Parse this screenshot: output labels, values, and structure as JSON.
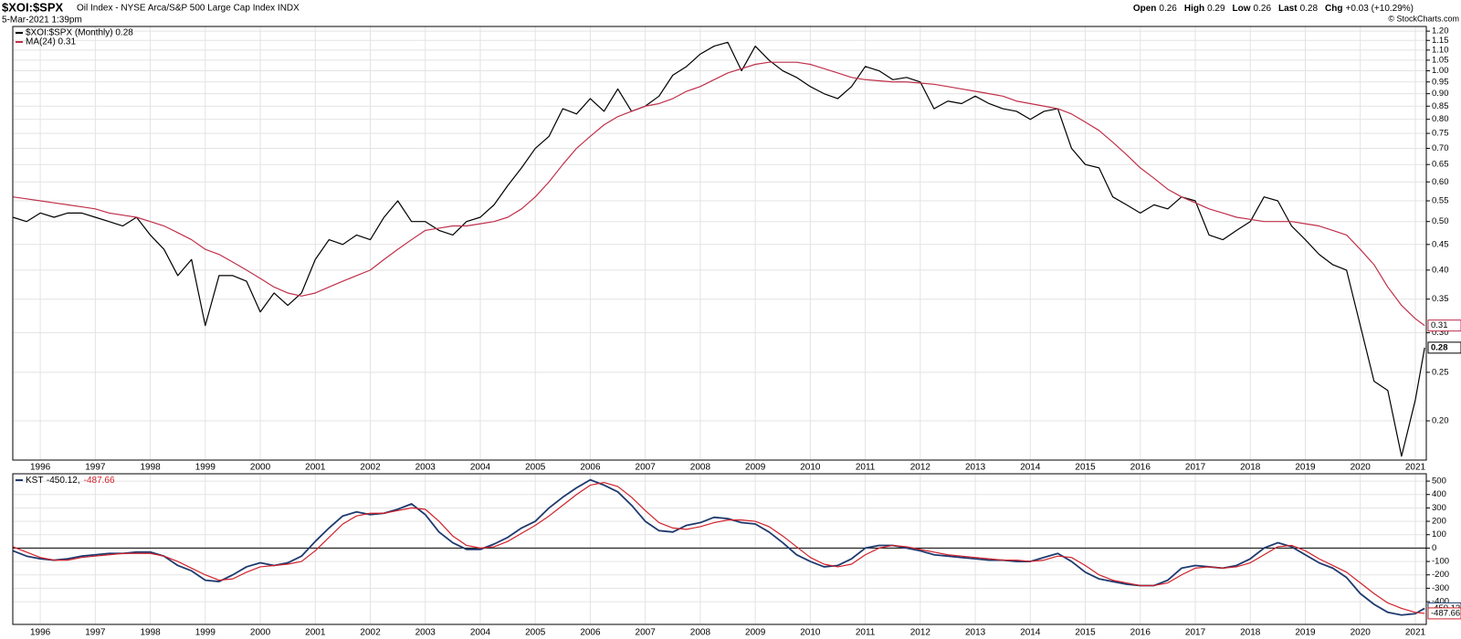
{
  "header": {
    "symbol": "$XOI:$SPX",
    "description": "Oil Index - NYSE Arca/S&P 500 Large Cap Index INDX",
    "date": "5-Mar-2021 1:39pm",
    "quote": [
      {
        "label": "Open",
        "value": "0.26"
      },
      {
        "label": "High",
        "value": "0.29"
      },
      {
        "label": "Low",
        "value": "0.26"
      },
      {
        "label": "Last",
        "value": "0.28"
      },
      {
        "label": "Chg",
        "value": "+0.03 (+10.29%)"
      }
    ],
    "copyright": "© StockCharts.com"
  },
  "chart_data": [
    {
      "type": "line",
      "log": true,
      "grid": true,
      "xlim": [
        1995.5,
        2021.2
      ],
      "ylim": [
        0.167,
        1.226
      ],
      "xticks": [
        1996,
        1997,
        1998,
        1999,
        2000,
        2001,
        2002,
        2003,
        2004,
        2005,
        2006,
        2007,
        2008,
        2009,
        2010,
        2011,
        2012,
        2013,
        2014,
        2015,
        2016,
        2017,
        2018,
        2019,
        2020,
        2021
      ],
      "yticks": [
        {
          "value": 0.2,
          "label": "0.20"
        },
        0.25,
        {
          "value": 0.3,
          "label": "0.30"
        },
        0.35,
        {
          "value": 0.4,
          "label": "0.40"
        },
        0.45,
        {
          "value": 0.5,
          "label": "0.50"
        },
        0.55,
        {
          "value": 0.6,
          "label": "0.60"
        },
        0.65,
        {
          "value": 0.7,
          "label": "0.70"
        },
        0.75,
        {
          "value": 0.8,
          "label": "0.80"
        },
        0.85,
        {
          "value": 0.9,
          "label": "0.90"
        },
        0.95,
        {
          "value": 1.0,
          "label": "1.00"
        },
        1.05,
        {
          "value": 1.1,
          "label": "1.10"
        },
        1.15,
        {
          "value": 1.2,
          "label": "1.20"
        }
      ],
      "x": [
        1995.5,
        1995.75,
        1996,
        1996.25,
        1996.5,
        1996.75,
        1997,
        1997.25,
        1997.5,
        1997.75,
        1998,
        1998.25,
        1998.5,
        1998.75,
        1999,
        1999.25,
        1999.5,
        1999.75,
        2000,
        2000.25,
        2000.5,
        2000.75,
        2001,
        2001.25,
        2001.5,
        2001.75,
        2002,
        2002.25,
        2002.5,
        2002.75,
        2003,
        2003.25,
        2003.5,
        2003.75,
        2004,
        2004.25,
        2004.5,
        2004.75,
        2005,
        2005.25,
        2005.5,
        2005.75,
        2006,
        2006.25,
        2006.5,
        2006.75,
        2007,
        2007.25,
        2007.5,
        2007.75,
        2008,
        2008.25,
        2008.5,
        2008.75,
        2009,
        2009.25,
        2009.5,
        2009.75,
        2010,
        2010.25,
        2010.5,
        2010.75,
        2011,
        2011.25,
        2011.5,
        2011.75,
        2012,
        2012.25,
        2012.5,
        2012.75,
        2013,
        2013.25,
        2013.5,
        2013.75,
        2014,
        2014.25,
        2014.5,
        2014.75,
        2015,
        2015.25,
        2015.5,
        2015.75,
        2016,
        2016.25,
        2016.5,
        2016.75,
        2017,
        2017.25,
        2017.5,
        2017.75,
        2018,
        2018.25,
        2018.5,
        2018.75,
        2019,
        2019.25,
        2019.5,
        2019.75,
        2020,
        2020.25,
        2020.5,
        2020.75,
        2021,
        2021.17
      ],
      "series": [
        {
          "name": "$XOI:$SPX (Monthly) 0.28",
          "color": "#000000",
          "last_label": "0.28",
          "values": [
            0.51,
            0.5,
            0.52,
            0.51,
            0.52,
            0.52,
            0.51,
            0.5,
            0.49,
            0.51,
            0.47,
            0.44,
            0.39,
            0.42,
            0.31,
            0.39,
            0.39,
            0.38,
            0.33,
            0.36,
            0.34,
            0.36,
            0.42,
            0.46,
            0.45,
            0.47,
            0.46,
            0.51,
            0.55,
            0.5,
            0.5,
            0.48,
            0.47,
            0.5,
            0.51,
            0.54,
            0.59,
            0.64,
            0.7,
            0.74,
            0.84,
            0.82,
            0.88,
            0.83,
            0.92,
            0.83,
            0.85,
            0.89,
            0.98,
            1.02,
            1.08,
            1.12,
            1.14,
            1.0,
            1.12,
            1.05,
            1.0,
            0.97,
            0.93,
            0.9,
            0.88,
            0.93,
            1.02,
            1.0,
            0.96,
            0.97,
            0.95,
            0.84,
            0.87,
            0.86,
            0.89,
            0.86,
            0.84,
            0.83,
            0.8,
            0.83,
            0.84,
            0.7,
            0.65,
            0.64,
            0.56,
            0.54,
            0.52,
            0.54,
            0.53,
            0.56,
            0.55,
            0.47,
            0.46,
            0.48,
            0.5,
            0.56,
            0.55,
            0.49,
            0.46,
            0.43,
            0.41,
            0.4,
            0.31,
            0.24,
            0.23,
            0.17,
            0.22,
            0.28
          ]
        },
        {
          "name": "MA(24) 0.31",
          "color": "#c0304a",
          "last_label": "0.31",
          "values": [
            0.56,
            0.555,
            0.55,
            0.545,
            0.54,
            0.535,
            0.53,
            0.52,
            0.515,
            0.51,
            0.5,
            0.49,
            0.475,
            0.46,
            0.44,
            0.43,
            0.415,
            0.4,
            0.385,
            0.37,
            0.36,
            0.355,
            0.36,
            0.37,
            0.38,
            0.39,
            0.4,
            0.42,
            0.44,
            0.46,
            0.48,
            0.485,
            0.49,
            0.49,
            0.495,
            0.5,
            0.51,
            0.53,
            0.56,
            0.6,
            0.65,
            0.7,
            0.74,
            0.78,
            0.81,
            0.83,
            0.85,
            0.86,
            0.88,
            0.91,
            0.93,
            0.96,
            0.99,
            1.01,
            1.03,
            1.04,
            1.04,
            1.04,
            1.03,
            1.01,
            0.99,
            0.97,
            0.96,
            0.955,
            0.95,
            0.95,
            0.945,
            0.94,
            0.93,
            0.92,
            0.91,
            0.9,
            0.89,
            0.87,
            0.86,
            0.85,
            0.84,
            0.82,
            0.79,
            0.76,
            0.72,
            0.68,
            0.64,
            0.61,
            0.58,
            0.56,
            0.545,
            0.53,
            0.52,
            0.51,
            0.505,
            0.5,
            0.5,
            0.5,
            0.495,
            0.49,
            0.48,
            0.47,
            0.44,
            0.41,
            0.37,
            0.34,
            0.32,
            0.31
          ]
        }
      ]
    },
    {
      "type": "line",
      "log": false,
      "grid": true,
      "reference_line": 0,
      "xlim": [
        1995.5,
        2021.2
      ],
      "ylim": [
        -570,
        555
      ],
      "xticks": [
        1996,
        1997,
        1998,
        1999,
        2000,
        2001,
        2002,
        2003,
        2004,
        2005,
        2006,
        2007,
        2008,
        2009,
        2010,
        2011,
        2012,
        2013,
        2014,
        2015,
        2016,
        2017,
        2018,
        2019,
        2020,
        2021
      ],
      "yticks": [
        -400,
        -300,
        -200,
        -100,
        0,
        100,
        200,
        300,
        400,
        500
      ],
      "legend_values": [
        "-450.12,",
        "-487.66"
      ],
      "x": [
        1995.5,
        1995.75,
        1996,
        1996.25,
        1996.5,
        1996.75,
        1997,
        1997.25,
        1997.5,
        1997.75,
        1998,
        1998.25,
        1998.5,
        1998.75,
        1999,
        1999.25,
        1999.5,
        1999.75,
        2000,
        2000.25,
        2000.5,
        2000.75,
        2001,
        2001.25,
        2001.5,
        2001.75,
        2002,
        2002.25,
        2002.5,
        2002.75,
        2003,
        2003.25,
        2003.5,
        2003.75,
        2004,
        2004.25,
        2004.5,
        2004.75,
        2005,
        2005.25,
        2005.5,
        2005.75,
        2006,
        2006.25,
        2006.5,
        2006.75,
        2007,
        2007.25,
        2007.5,
        2007.75,
        2008,
        2008.25,
        2008.5,
        2008.75,
        2009,
        2009.25,
        2009.5,
        2009.75,
        2010,
        2010.25,
        2010.5,
        2010.75,
        2011,
        2011.25,
        2011.5,
        2011.75,
        2012,
        2012.25,
        2012.5,
        2012.75,
        2013,
        2013.25,
        2013.5,
        2013.75,
        2014,
        2014.25,
        2014.5,
        2014.75,
        2015,
        2015.25,
        2015.5,
        2015.75,
        2016,
        2016.25,
        2016.5,
        2016.75,
        2017,
        2017.25,
        2017.5,
        2017.75,
        2018,
        2018.25,
        2018.5,
        2018.75,
        2019,
        2019.25,
        2019.5,
        2019.75,
        2020,
        2020.25,
        2020.5,
        2020.75,
        2021,
        2021.17
      ],
      "series": [
        {
          "name": "KST",
          "color": "#1f3a6e",
          "last_label": "-450.12",
          "values": [
            -20,
            -60,
            -80,
            -90,
            -80,
            -60,
            -50,
            -40,
            -40,
            -30,
            -30,
            -60,
            -130,
            -170,
            -240,
            -250,
            -200,
            -140,
            -110,
            -130,
            -110,
            -60,
            50,
            150,
            240,
            270,
            250,
            260,
            290,
            330,
            250,
            120,
            40,
            -10,
            -10,
            30,
            80,
            150,
            200,
            300,
            380,
            450,
            510,
            470,
            420,
            320,
            200,
            130,
            120,
            170,
            190,
            230,
            220,
            190,
            180,
            120,
            40,
            -50,
            -100,
            -140,
            -130,
            -80,
            0,
            20,
            20,
            0,
            -20,
            -50,
            -60,
            -70,
            -80,
            -90,
            -90,
            -100,
            -100,
            -70,
            -40,
            -100,
            -180,
            -230,
            -250,
            -270,
            -280,
            -280,
            -240,
            -150,
            -130,
            -140,
            -150,
            -130,
            -80,
            0,
            40,
            10,
            -50,
            -110,
            -150,
            -220,
            -340,
            -420,
            -480,
            -500,
            -490,
            -450.12
          ]
        },
        {
          "color": "#d0202a",
          "last_label": "-487.66",
          "values": [
            10,
            -30,
            -70,
            -90,
            -90,
            -70,
            -60,
            -50,
            -40,
            -40,
            -40,
            -60,
            -100,
            -150,
            -200,
            -240,
            -230,
            -180,
            -140,
            -130,
            -120,
            -100,
            -20,
            80,
            180,
            240,
            260,
            260,
            280,
            300,
            290,
            200,
            90,
            20,
            0,
            10,
            50,
            110,
            170,
            240,
            320,
            400,
            470,
            490,
            460,
            380,
            280,
            190,
            150,
            140,
            160,
            190,
            210,
            210,
            200,
            160,
            90,
            10,
            -70,
            -120,
            -140,
            -120,
            -50,
            0,
            20,
            10,
            -10,
            -30,
            -50,
            -60,
            -70,
            -80,
            -90,
            -90,
            -100,
            -90,
            -60,
            -70,
            -130,
            -200,
            -240,
            -260,
            -280,
            -280,
            -260,
            -200,
            -150,
            -140,
            -150,
            -140,
            -110,
            -50,
            10,
            20,
            -20,
            -80,
            -130,
            -180,
            -260,
            -340,
            -410,
            -450,
            -480,
            -487.66
          ]
        }
      ]
    }
  ]
}
